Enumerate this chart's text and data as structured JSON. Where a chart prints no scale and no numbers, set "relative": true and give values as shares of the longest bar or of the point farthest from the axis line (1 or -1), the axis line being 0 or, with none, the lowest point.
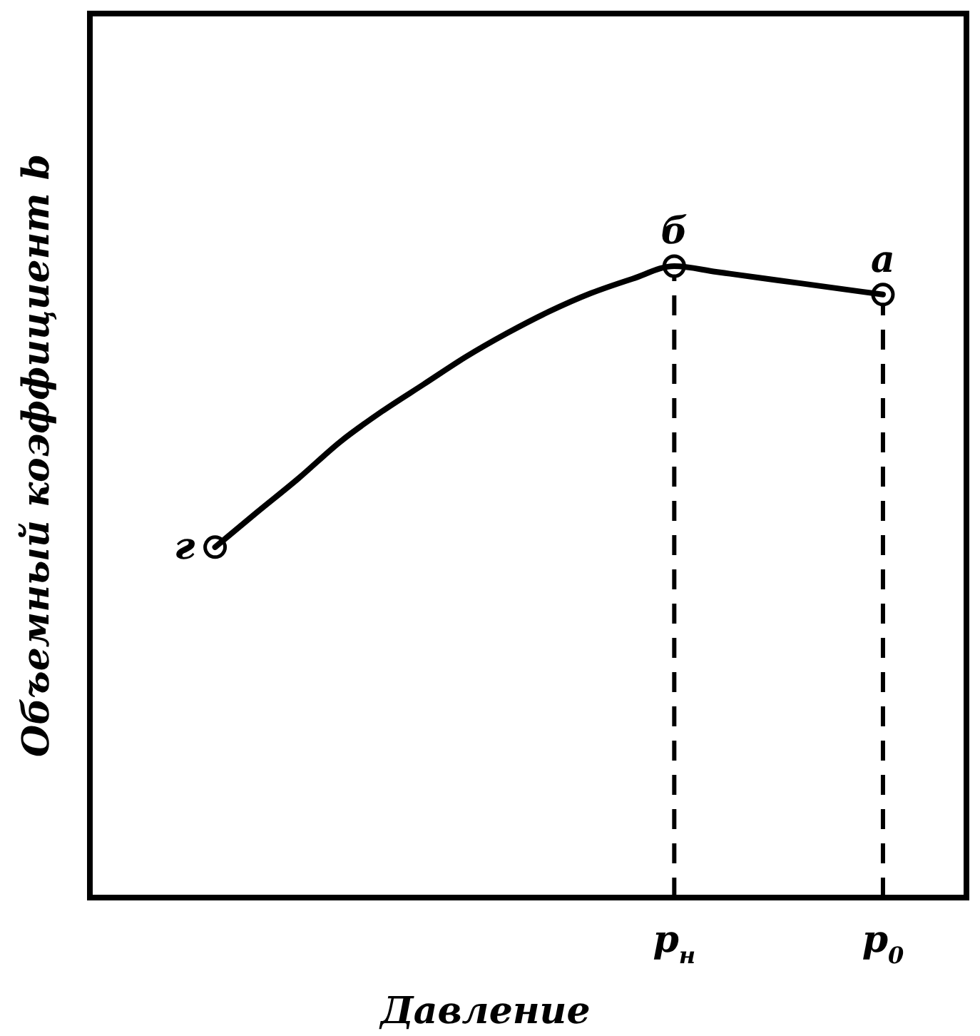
{
  "chart_data": {
    "type": "line",
    "relative": true,
    "xlabel": "Давление",
    "ylabel": "Объемный коэффициент b",
    "categories": [
      null,
      null,
      null,
      null,
      null,
      null,
      null,
      null,
      null,
      null,
      null,
      null,
      null,
      null,
      "p$_{н}$",
      null,
      null,
      null,
      null,
      "p$_{0}$",
      null,
      null
    ],
    "series": [
      {
        "color": "#000000",
        "marker": "none",
        "values": [
          null,
          null,
          null,
          0.555,
          0.61,
          0.664,
          0.722,
          0.77,
          0.813,
          0.856,
          0.894,
          0.928,
          0.957,
          0.98,
          1,
          0.991,
          0.982,
          0.973,
          0.964,
          0.955,
          null,
          null
        ]
      },
      {
        "type": "scatter",
        "color": "#000000",
        "marker": "circle",
        "values": [
          null,
          null,
          null,
          0.555,
          null,
          null,
          null,
          null,
          null,
          null,
          null,
          null,
          null,
          null,
          1,
          null,
          null,
          null,
          null,
          0.955,
          null,
          null
        ]
      }
    ],
    "line_style": "solid",
    "legend": false,
    "ref_lines": [
      {
        "axis": "x",
        "value": "p$_{н}$",
        "line_style": "dashed",
        "color": "#000000"
      },
      {
        "axis": "x",
        "value": "p$_{0}$",
        "line_style": "dashed",
        "color": "#000000"
      }
    ],
    "annotations": [
      "г",
      "б",
      "а"
    ]
  }
}
